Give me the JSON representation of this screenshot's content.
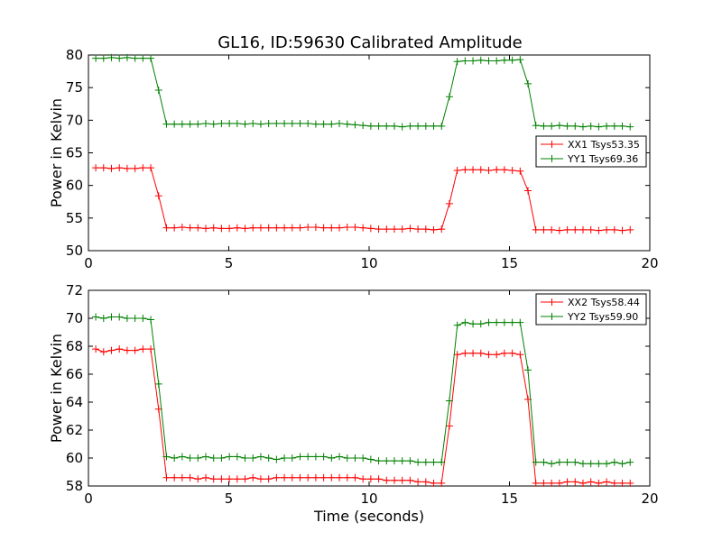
{
  "title": "GL16, ID:59630 Calibrated Amplitude",
  "chart_data": [
    {
      "type": "line",
      "xlabel": "",
      "ylabel": "Power in Kelvin",
      "xlim": [
        0,
        20
      ],
      "ylim": [
        50,
        80
      ],
      "xticks": [
        0,
        5,
        10,
        15,
        20
      ],
      "yticks": [
        50,
        55,
        60,
        65,
        70,
        75,
        80
      ],
      "grid": false,
      "legend_position": "right",
      "series": [
        {
          "name": "XX1 Tsys53.35",
          "color": "#ff0000",
          "x": [
            0.26,
            0.54,
            0.82,
            1.1,
            1.38,
            1.66,
            1.94,
            2.22,
            2.5,
            2.78,
            3.06,
            3.34,
            3.62,
            3.9,
            4.18,
            4.46,
            4.74,
            5.02,
            5.3,
            5.58,
            5.86,
            6.14,
            6.42,
            6.7,
            6.98,
            7.26,
            7.54,
            7.82,
            8.1,
            8.38,
            8.66,
            8.94,
            9.22,
            9.5,
            9.78,
            10.06,
            10.34,
            10.62,
            10.9,
            11.18,
            11.46,
            11.74,
            12.02,
            12.3,
            12.58,
            12.86,
            13.14,
            13.42,
            13.7,
            13.98,
            14.26,
            14.54,
            14.82,
            15.1,
            15.38,
            15.66,
            15.94,
            16.22,
            16.5,
            16.78,
            17.06,
            17.34,
            17.62,
            17.9,
            18.18,
            18.46,
            18.74,
            19.02,
            19.3
          ],
          "y": [
            62.7,
            62.7,
            62.6,
            62.7,
            62.6,
            62.6,
            62.7,
            62.7,
            58.4,
            53.5,
            53.5,
            53.6,
            53.5,
            53.5,
            53.4,
            53.5,
            53.4,
            53.4,
            53.5,
            53.4,
            53.5,
            53.5,
            53.5,
            53.5,
            53.5,
            53.5,
            53.5,
            53.6,
            53.6,
            53.5,
            53.5,
            53.5,
            53.6,
            53.6,
            53.5,
            53.4,
            53.3,
            53.3,
            53.3,
            53.3,
            53.4,
            53.3,
            53.3,
            53.2,
            53.3,
            57.2,
            62.3,
            62.4,
            62.4,
            62.4,
            62.3,
            62.4,
            62.4,
            62.3,
            62.2,
            59.2,
            53.2,
            53.2,
            53.2,
            53.1,
            53.2,
            53.2,
            53.2,
            53.2,
            53.1,
            53.2,
            53.2,
            53.1,
            53.2
          ]
        },
        {
          "name": "YY1 Tsys69.36",
          "color": "#008000",
          "x": [
            0.26,
            0.54,
            0.82,
            1.1,
            1.38,
            1.66,
            1.94,
            2.22,
            2.5,
            2.78,
            3.06,
            3.34,
            3.62,
            3.9,
            4.18,
            4.46,
            4.74,
            5.02,
            5.3,
            5.58,
            5.86,
            6.14,
            6.42,
            6.7,
            6.98,
            7.26,
            7.54,
            7.82,
            8.1,
            8.38,
            8.66,
            8.94,
            9.22,
            9.5,
            9.78,
            10.06,
            10.34,
            10.62,
            10.9,
            11.18,
            11.46,
            11.74,
            12.02,
            12.3,
            12.58,
            12.86,
            13.14,
            13.42,
            13.7,
            13.98,
            14.26,
            14.54,
            14.82,
            15.1,
            15.38,
            15.66,
            15.94,
            16.22,
            16.5,
            16.78,
            17.06,
            17.34,
            17.62,
            17.9,
            18.18,
            18.46,
            18.74,
            19.02,
            19.3
          ],
          "y": [
            79.5,
            79.5,
            79.6,
            79.5,
            79.6,
            79.5,
            79.5,
            79.5,
            74.6,
            69.4,
            69.4,
            69.4,
            69.4,
            69.4,
            69.5,
            69.4,
            69.5,
            69.5,
            69.5,
            69.4,
            69.5,
            69.4,
            69.5,
            69.5,
            69.5,
            69.5,
            69.5,
            69.5,
            69.4,
            69.4,
            69.4,
            69.5,
            69.4,
            69.3,
            69.2,
            69.1,
            69.1,
            69.1,
            69.1,
            69.0,
            69.1,
            69.1,
            69.1,
            69.1,
            69.1,
            73.6,
            79.0,
            79.1,
            79.1,
            79.2,
            79.1,
            79.1,
            79.2,
            79.2,
            79.3,
            75.6,
            69.2,
            69.1,
            69.1,
            69.2,
            69.1,
            69.1,
            69.0,
            69.1,
            69.0,
            69.1,
            69.1,
            69.1,
            69.0
          ]
        }
      ]
    },
    {
      "type": "line",
      "xlabel": "Time (seconds)",
      "ylabel": "Power in Kelvin",
      "xlim": [
        0,
        20
      ],
      "ylim": [
        58,
        72
      ],
      "xticks": [
        0,
        5,
        10,
        15,
        20
      ],
      "yticks": [
        58,
        60,
        62,
        64,
        66,
        68,
        70,
        72
      ],
      "grid": false,
      "legend_position": "top-right",
      "series": [
        {
          "name": "XX2 Tsys58.44",
          "color": "#ff0000",
          "x": [
            0.26,
            0.54,
            0.82,
            1.1,
            1.38,
            1.66,
            1.94,
            2.22,
            2.5,
            2.78,
            3.06,
            3.34,
            3.62,
            3.9,
            4.18,
            4.46,
            4.74,
            5.02,
            5.3,
            5.58,
            5.86,
            6.14,
            6.42,
            6.7,
            6.98,
            7.26,
            7.54,
            7.82,
            8.1,
            8.38,
            8.66,
            8.94,
            9.22,
            9.5,
            9.78,
            10.06,
            10.34,
            10.62,
            10.9,
            11.18,
            11.46,
            11.74,
            12.02,
            12.3,
            12.58,
            12.86,
            13.14,
            13.42,
            13.7,
            13.98,
            14.26,
            14.54,
            14.82,
            15.1,
            15.38,
            15.66,
            15.94,
            16.22,
            16.5,
            16.78,
            17.06,
            17.34,
            17.62,
            17.9,
            18.18,
            18.46,
            18.74,
            19.02,
            19.3
          ],
          "y": [
            67.8,
            67.6,
            67.7,
            67.8,
            67.7,
            67.7,
            67.8,
            67.8,
            63.5,
            58.6,
            58.6,
            58.6,
            58.6,
            58.5,
            58.6,
            58.5,
            58.5,
            58.5,
            58.5,
            58.5,
            58.6,
            58.5,
            58.5,
            58.6,
            58.6,
            58.6,
            58.6,
            58.6,
            58.6,
            58.6,
            58.6,
            58.6,
            58.6,
            58.6,
            58.5,
            58.5,
            58.5,
            58.4,
            58.4,
            58.4,
            58.4,
            58.3,
            58.3,
            58.2,
            58.2,
            62.3,
            67.4,
            67.5,
            67.5,
            67.5,
            67.4,
            67.4,
            67.5,
            67.5,
            67.4,
            64.2,
            58.2,
            58.2,
            58.2,
            58.2,
            58.3,
            58.3,
            58.2,
            58.3,
            58.2,
            58.3,
            58.2,
            58.2,
            58.2
          ]
        },
        {
          "name": "YY2 Tsys59.90",
          "color": "#008000",
          "x": [
            0.26,
            0.54,
            0.82,
            1.1,
            1.38,
            1.66,
            1.94,
            2.22,
            2.5,
            2.78,
            3.06,
            3.34,
            3.62,
            3.9,
            4.18,
            4.46,
            4.74,
            5.02,
            5.3,
            5.58,
            5.86,
            6.14,
            6.42,
            6.7,
            6.98,
            7.26,
            7.54,
            7.82,
            8.1,
            8.38,
            8.66,
            8.94,
            9.22,
            9.5,
            9.78,
            10.06,
            10.34,
            10.62,
            10.9,
            11.18,
            11.46,
            11.74,
            12.02,
            12.3,
            12.58,
            12.86,
            13.14,
            13.42,
            13.7,
            13.98,
            14.26,
            14.54,
            14.82,
            15.1,
            15.38,
            15.66,
            15.94,
            16.22,
            16.5,
            16.78,
            17.06,
            17.34,
            17.62,
            17.9,
            18.18,
            18.46,
            18.74,
            19.02,
            19.3
          ],
          "y": [
            70.1,
            70.0,
            70.1,
            70.1,
            70.0,
            70.0,
            70.0,
            69.9,
            65.3,
            60.1,
            60.0,
            60.1,
            60.0,
            60.0,
            60.1,
            60.0,
            60.0,
            60.1,
            60.1,
            60.0,
            60.0,
            60.1,
            60.0,
            59.9,
            60.0,
            60.0,
            60.1,
            60.1,
            60.1,
            60.1,
            60.0,
            60.1,
            60.0,
            60.0,
            60.0,
            59.9,
            59.8,
            59.8,
            59.8,
            59.8,
            59.8,
            59.7,
            59.7,
            59.7,
            59.7,
            64.1,
            69.5,
            69.7,
            69.6,
            69.6,
            69.7,
            69.7,
            69.7,
            69.7,
            69.7,
            66.3,
            59.7,
            59.7,
            59.6,
            59.7,
            59.7,
            59.7,
            59.6,
            59.6,
            59.6,
            59.6,
            59.7,
            59.6,
            59.7
          ]
        }
      ]
    }
  ]
}
